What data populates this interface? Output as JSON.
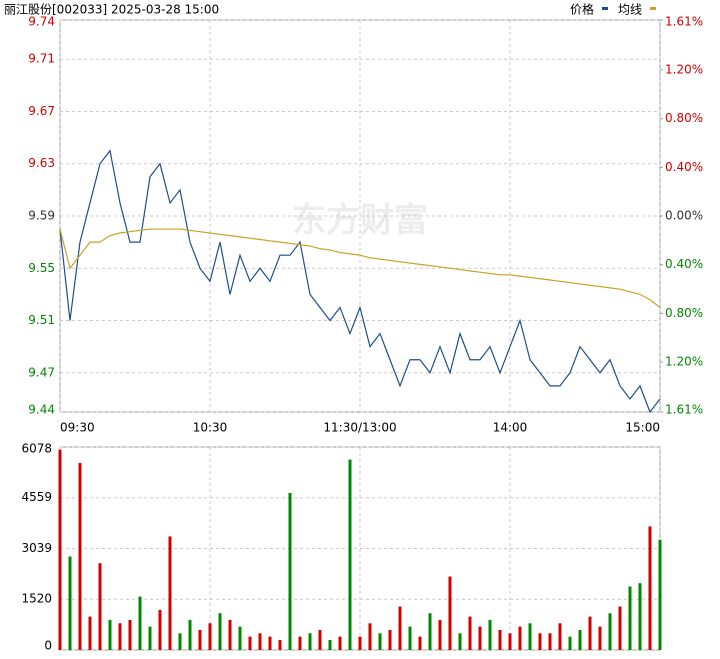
{
  "chart_data": {
    "type": "intraday",
    "title": "丽江股份[002033] 2025-03-28 15:00",
    "watermark": "东方财富",
    "legend": [
      "价格",
      "均线"
    ],
    "x": [
      0,
      4,
      8,
      12,
      16,
      20,
      24,
      28,
      32,
      36,
      40,
      44,
      48,
      52,
      56,
      60,
      64,
      68,
      72,
      76,
      80,
      84,
      88,
      92,
      96,
      100,
      104,
      108,
      112,
      116,
      120,
      124,
      128,
      132,
      136,
      140,
      144,
      148,
      152,
      156,
      160,
      164,
      168,
      172,
      176,
      180,
      184,
      188,
      192,
      196,
      200,
      204,
      208,
      212,
      216,
      220,
      224,
      228,
      232,
      236,
      240
    ],
    "xlim": [
      0,
      240
    ],
    "xticks": [
      {
        "value": 0,
        "label": "09:30"
      },
      {
        "value": 60,
        "label": "10:30"
      },
      {
        "value": 120,
        "label": "11:30/13:00"
      },
      {
        "value": 180,
        "label": "14:00"
      },
      {
        "value": 240,
        "label": "15:00"
      }
    ],
    "series": [
      {
        "name": "价格",
        "color": "#1f4e8c",
        "values": [
          9.58,
          9.51,
          9.57,
          9.6,
          9.63,
          9.64,
          9.6,
          9.57,
          9.57,
          9.62,
          9.63,
          9.6,
          9.61,
          9.57,
          9.55,
          9.54,
          9.57,
          9.53,
          9.56,
          9.54,
          9.55,
          9.54,
          9.56,
          9.56,
          9.57,
          9.53,
          9.52,
          9.51,
          9.52,
          9.5,
          9.52,
          9.49,
          9.5,
          9.48,
          9.46,
          9.48,
          9.48,
          9.47,
          9.49,
          9.47,
          9.5,
          9.48,
          9.48,
          9.49,
          9.47,
          9.49,
          9.51,
          9.48,
          9.47,
          9.46,
          9.46,
          9.47,
          9.49,
          9.48,
          9.47,
          9.48,
          9.46,
          9.45,
          9.46,
          9.44,
          9.45
        ]
      },
      {
        "name": "均线",
        "color": "#c9a227",
        "values": [
          9.58,
          9.55,
          9.56,
          9.57,
          9.57,
          9.575,
          9.577,
          9.578,
          9.579,
          9.58,
          9.58,
          9.58,
          9.58,
          9.579,
          9.578,
          9.577,
          9.576,
          9.575,
          9.574,
          9.573,
          9.572,
          9.571,
          9.57,
          9.569,
          9.568,
          9.567,
          9.565,
          9.564,
          9.562,
          9.561,
          9.56,
          9.558,
          9.557,
          9.556,
          9.555,
          9.554,
          9.553,
          9.552,
          9.551,
          9.55,
          9.549,
          9.548,
          9.547,
          9.546,
          9.545,
          9.545,
          9.544,
          9.543,
          9.542,
          9.541,
          9.54,
          9.539,
          9.538,
          9.537,
          9.536,
          9.535,
          9.534,
          9.532,
          9.53,
          9.526,
          9.52
        ]
      }
    ],
    "ylim": [
      9.44,
      9.74
    ],
    "yticks": [
      9.44,
      9.47,
      9.51,
      9.55,
      9.59,
      9.63,
      9.67,
      9.71,
      9.74
    ],
    "y2lim": [
      -1.61,
      1.61
    ],
    "y2ticks": [
      {
        "value": -1.61,
        "label": "1.61%"
      },
      {
        "value": -1.2,
        "label": "1.20%"
      },
      {
        "value": -0.8,
        "label": "0.80%"
      },
      {
        "value": -0.4,
        "label": "0.40%"
      },
      {
        "value": 0,
        "label": "0.00%"
      },
      {
        "value": 0.4,
        "label": "0.40%"
      },
      {
        "value": 0.8,
        "label": "0.80%"
      },
      {
        "value": 1.2,
        "label": "1.20%"
      },
      {
        "value": 1.61,
        "label": "1.61%"
      }
    ],
    "up_color": "#d00000",
    "down_color": "#008800",
    "volume": {
      "values": [
        6000,
        2800,
        5600,
        1000,
        2600,
        900,
        800,
        900,
        1600,
        700,
        1200,
        3400,
        500,
        900,
        600,
        800,
        1100,
        900,
        700,
        400,
        500,
        400,
        300,
        4700,
        400,
        500,
        600,
        300,
        400,
        5700,
        400,
        800,
        500,
        600,
        1300,
        700,
        400,
        1100,
        900,
        2200,
        500,
        1000,
        700,
        900,
        600,
        500,
        700,
        800,
        500,
        500,
        800,
        400,
        600,
        1000,
        700,
        1100,
        1300,
        1900,
        2000,
        3700,
        3300
      ],
      "colors": [
        "#d00000",
        "#008800",
        "#d00000",
        "#d00000",
        "#d00000",
        "#008800",
        "#d00000",
        "#d00000",
        "#008800",
        "#008800",
        "#d00000",
        "#d00000",
        "#008800",
        "#008800",
        "#d00000",
        "#d00000",
        "#008800",
        "#d00000",
        "#008800",
        "#d00000",
        "#d00000",
        "#d00000",
        "#d00000",
        "#008800",
        "#d00000",
        "#008800",
        "#d00000",
        "#008800",
        "#d00000",
        "#008800",
        "#d00000",
        "#d00000",
        "#008800",
        "#d00000",
        "#d00000",
        "#008800",
        "#d00000",
        "#008800",
        "#d00000",
        "#d00000",
        "#008800",
        "#d00000",
        "#d00000",
        "#008800",
        "#d00000",
        "#d00000",
        "#d00000",
        "#008800",
        "#d00000",
        "#d00000",
        "#d00000",
        "#008800",
        "#008800",
        "#d00000",
        "#d00000",
        "#008800",
        "#d00000",
        "#008800",
        "#008800",
        "#d00000",
        "#008800"
      ],
      "ylim": [
        0,
        6078
      ],
      "yticks": [
        0,
        1520,
        3039,
        4559,
        6078
      ]
    }
  }
}
